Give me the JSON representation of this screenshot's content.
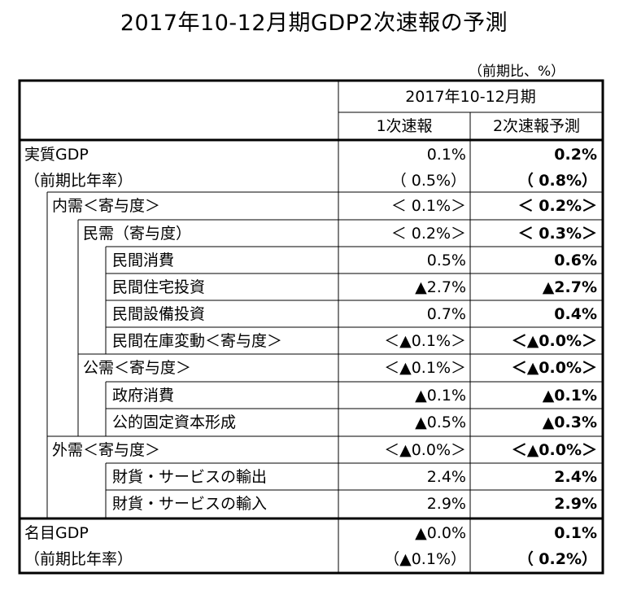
{
  "title": "2017年10-12月期GDP2次速報の予測",
  "unit_note": "（前期比、%）",
  "header": {
    "period": "2017年10-12月期",
    "col1": "1次速報",
    "col2": "2次速報予測"
  },
  "rows": [
    {
      "label": "実質GDP",
      "v1": "0.1%",
      "v2": "0.2%"
    },
    {
      "label": "（前期比年率）",
      "v1": "（ 0.5%）",
      "v2": "（ 0.8%）"
    },
    {
      "label": "内需＜寄与度＞",
      "v1": "＜ 0.1%＞",
      "v2": "＜ 0.2%＞"
    },
    {
      "label": "民需（寄与度）",
      "v1": "＜ 0.2%＞",
      "v2": "＜ 0.3%＞"
    },
    {
      "label": "民間消費",
      "v1": "0.5%",
      "v2": "0.6%"
    },
    {
      "label": "民間住宅投資",
      "v1": "▲2.7%",
      "v2": "▲2.7%"
    },
    {
      "label": "民間設備投資",
      "v1": "0.7%",
      "v2": "0.4%"
    },
    {
      "label": "民間在庫変動＜寄与度＞",
      "v1": "＜▲0.1%＞",
      "v2": "＜▲0.0%＞"
    },
    {
      "label": "公需＜寄与度＞",
      "v1": "＜▲0.1%＞",
      "v2": "＜▲0.0%＞"
    },
    {
      "label": "政府消費",
      "v1": "▲0.1%",
      "v2": "▲0.1%"
    },
    {
      "label": "公的固定資本形成",
      "v1": "▲0.5%",
      "v2": "▲0.3%"
    },
    {
      "label": "外需＜寄与度＞",
      "v1": "＜▲0.0%＞",
      "v2": "＜▲0.0%＞"
    },
    {
      "label": "財貨・サービスの輸出",
      "v1": "2.4%",
      "v2": "2.4%"
    },
    {
      "label": "財貨・サービスの輸入",
      "v1": "2.9%",
      "v2": "2.9%"
    },
    {
      "label": "名目GDP",
      "v1": "▲0.0%",
      "v2": "0.1%"
    },
    {
      "label": "（前期比年率）",
      "v1": "（▲0.1%）",
      "v2": "（ 0.2%）"
    }
  ]
}
